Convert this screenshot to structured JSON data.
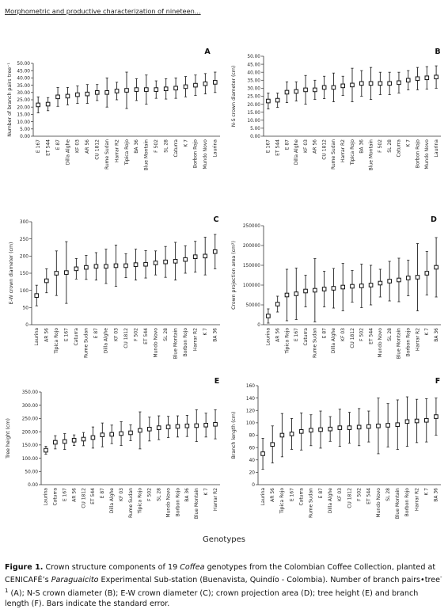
{
  "header": {
    "running_title": "Morphometric and productive characterization of nineteen..."
  },
  "figure": {
    "common_xlabel": "Genotypes",
    "caption": {
      "label": "Figure 1.",
      "text_1": " Crown structure components of 19 ",
      "italic_1": "Coffea",
      "text_2": " genotypes from the Colombian Coffee Collection, planted at CENICAFÉ’s ",
      "italic_2": "Paraguaicito",
      "text_3": " Experimental Sub-station (Buenavista, Quindío - Colombia). Number of branch pairs•tree",
      "sup": "-1",
      "text_4": " (A); N-S crown diameter (B); E-W crown diameter (C); crown projection area (D); tree height (E) and branch length (F). Bars indicate the standard error."
    }
  },
  "chart_data": [
    {
      "type": "scatter",
      "panel": "A",
      "ylabel": "Number of branch pairs tree⁻¹",
      "ylim": [
        0,
        50
      ],
      "yticks": [
        0,
        5,
        10,
        15,
        20,
        25,
        30,
        35,
        40,
        45,
        50
      ],
      "ytick_decimals": 2,
      "categories": [
        "E 167",
        "ET 544",
        "E 87",
        "Dilla Alghe",
        "KF 03",
        "AR 56",
        "CU 1812",
        "Rume Sudan",
        "Harrar R2",
        "Tipica Rojo",
        "BA 36",
        "Blue Montain",
        "F 502",
        "SL 28",
        "Caturra",
        "K 7",
        "Borbon Rojo",
        "Mundo Novo",
        "Laurina"
      ],
      "values": [
        21.5,
        22,
        27,
        27.5,
        28.5,
        29,
        30,
        30,
        31,
        31.5,
        32,
        32,
        32,
        32.5,
        33,
        34,
        35,
        36,
        37
      ],
      "errors": [
        5.5,
        4.5,
        6.5,
        6,
        6,
        6.5,
        5.5,
        10,
        6,
        12.5,
        7.5,
        10,
        6,
        7,
        7,
        7,
        7,
        7,
        7
      ]
    },
    {
      "type": "scatter",
      "panel": "B",
      "ylabel": "N-S crown diameter (cm)",
      "ylim": [
        0,
        50
      ],
      "yticks": [
        0,
        5,
        10,
        15,
        20,
        25,
        30,
        35,
        40,
        45,
        50
      ],
      "ytick_decimals": 2,
      "categories": [
        "E 167",
        "ET 544",
        "E 87",
        "Dilla Alghe",
        "KF 03",
        "AR 56",
        "CU 1812",
        "Rume Sudan",
        "Harrar R2",
        "Tipica Rojo",
        "BA 36",
        "Blue Montain",
        "F 502",
        "SL 28",
        "Caturra",
        "K 7",
        "Borbon Rojo",
        "Mundo Novo",
        "Laurina"
      ],
      "values": [
        22,
        22.5,
        27.5,
        28,
        29,
        29,
        30.5,
        30.5,
        31.5,
        32,
        33,
        33,
        33,
        33,
        33.5,
        35,
        36,
        36.5,
        37
      ],
      "errors": [
        5,
        4.5,
        6.5,
        6,
        9,
        6,
        7,
        9,
        6,
        10.5,
        8,
        10,
        7,
        7,
        6.5,
        6,
        7,
        7,
        7
      ]
    },
    {
      "type": "scatter",
      "panel": "C",
      "ylabel": "E-W crown diameter (cm)",
      "ylim": [
        0,
        300
      ],
      "yticks": [
        0,
        50,
        100,
        150,
        200,
        250,
        300
      ],
      "ytick_decimals": 0,
      "categories": [
        "Laurina",
        "AR 56",
        "Tipica Rojo",
        "E 167",
        "Caturra",
        "Rume Sudan",
        "E 87",
        "Dilla Alghe",
        "KF 03",
        "CU 1812",
        "F 502",
        "ET 544",
        "Mundo Novo",
        "SL 28",
        "Blue Montain",
        "Borbon Rojo",
        "Harrar R2",
        "K 7",
        "BA 36"
      ],
      "values": [
        85,
        128,
        150,
        152,
        163,
        167,
        170,
        170,
        172,
        172,
        175,
        176,
        180,
        183,
        185,
        190,
        198,
        200,
        213
      ],
      "errors": [
        30,
        35,
        65,
        90,
        30,
        35,
        40,
        50,
        60,
        35,
        45,
        40,
        35,
        45,
        55,
        40,
        45,
        55,
        50
      ]
    },
    {
      "type": "scatter",
      "panel": "D",
      "ylabel": "Crown projection area (cm²)",
      "ylim": [
        0,
        250000
      ],
      "yticks": [
        0,
        50000,
        100000,
        150000,
        200000,
        250000
      ],
      "ytick_decimals": 0,
      "categories": [
        "Laurina",
        "AR 56",
        "Tipica Rojo",
        "E 167",
        "Caturra",
        "Rume Sudan",
        "E 87",
        "Dilla Alghe",
        "KF 03",
        "CU 1812",
        "F 502",
        "ET 544",
        "Mundo Novo",
        "SL 28",
        "Blue Montain",
        "Borbon Rojo",
        "Harrar R2",
        "K 7",
        "BA 36"
      ],
      "values": [
        22000,
        52000,
        75000,
        78000,
        85000,
        87000,
        90000,
        92000,
        95000,
        97000,
        98000,
        100000,
        105000,
        110000,
        113000,
        118000,
        120000,
        130000,
        145000
      ],
      "errors": [
        18000,
        20000,
        65000,
        65000,
        40000,
        80000,
        45000,
        50000,
        60000,
        40000,
        55000,
        50000,
        35000,
        50000,
        55000,
        45000,
        85000,
        55000,
        75000
      ]
    },
    {
      "type": "scatter",
      "panel": "E",
      "ylabel": "Tree height (cm)",
      "ylim": [
        0,
        350
      ],
      "yticks": [
        0,
        50,
        100,
        150,
        200,
        250,
        300,
        350
      ],
      "ytick_decimals": 2,
      "categories": [
        "Laurina",
        "Caturra",
        "E 167",
        "AR 56",
        "CU 1812",
        "ET 544",
        "E 87",
        "Dilla Alghe",
        "KF 03",
        "Rume Sudan",
        "Tipica Rojo",
        "F 502",
        "SL 28",
        "Mundo Novo",
        "Borbon Rojo",
        "BA 36",
        "Blue Montain",
        "K 7",
        "Harrar R2"
      ],
      "values": [
        130,
        160,
        163,
        168,
        172,
        178,
        188,
        190,
        193,
        196,
        205,
        210,
        215,
        218,
        220,
        222,
        223,
        225,
        228
      ],
      "errors": [
        15,
        25,
        30,
        20,
        25,
        40,
        45,
        35,
        45,
        30,
        70,
        45,
        45,
        40,
        40,
        40,
        60,
        45,
        55
      ]
    },
    {
      "type": "scatter",
      "panel": "F",
      "ylabel": "Branch length (cm)",
      "ylim": [
        0,
        160
      ],
      "yticks": [
        0,
        20,
        40,
        60,
        80,
        100,
        120,
        140,
        160
      ],
      "ytick_decimals": 0,
      "categories": [
        "Laurina",
        "AR 56",
        "Tipica Rojo",
        "E 167",
        "Caturra",
        "Rume Sudan",
        "E 87",
        "Dilla Alghe",
        "KF 03",
        "CU 1812",
        "F 502",
        "ET 544",
        "Mundo Novo",
        "SL 28",
        "Blue Montain",
        "Borbon Rojo",
        "Harrar R2",
        "K 7",
        "BA 36"
      ],
      "values": [
        50,
        65,
        80,
        82,
        86,
        88,
        89,
        90,
        92,
        92,
        93,
        94,
        95,
        96,
        97,
        102,
        103,
        104,
        110
      ],
      "errors": [
        25,
        30,
        35,
        25,
        30,
        25,
        30,
        20,
        30,
        25,
        30,
        25,
        45,
        35,
        40,
        40,
        35,
        35,
        30
      ]
    }
  ]
}
